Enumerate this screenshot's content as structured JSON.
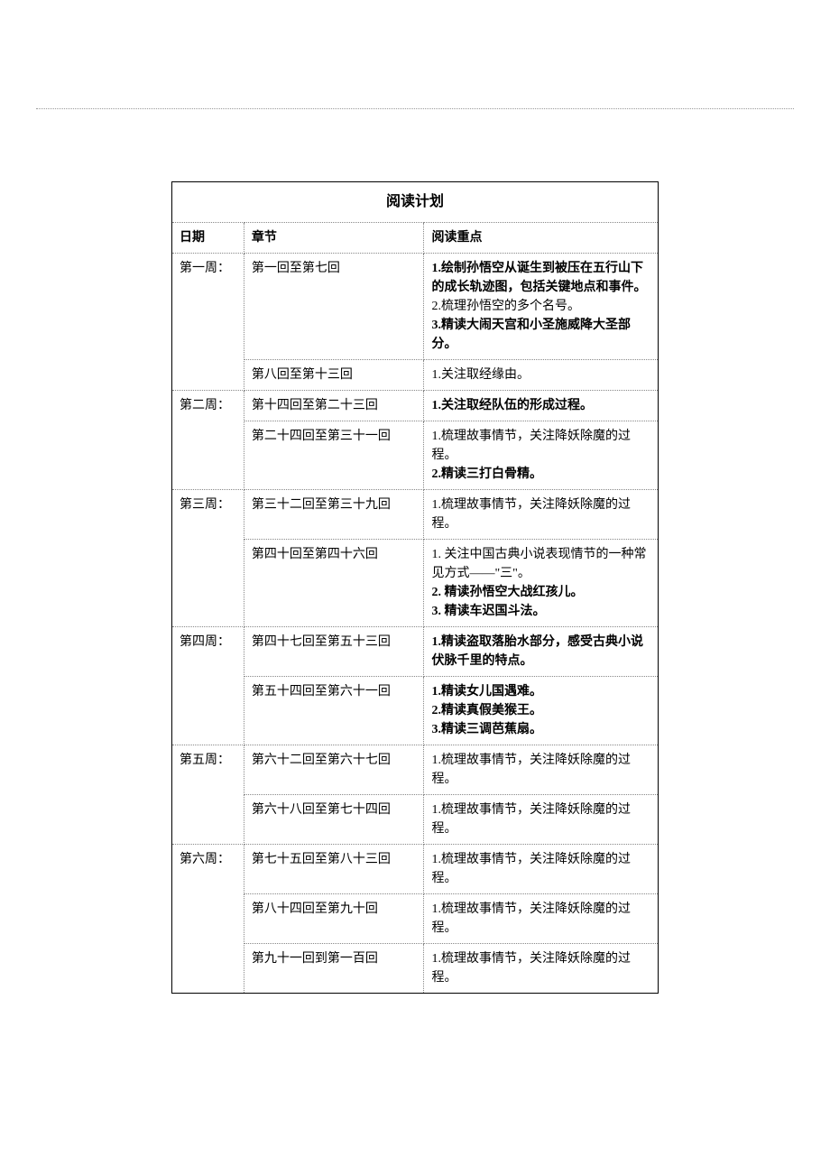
{
  "title": "阅读计划",
  "headers": {
    "date": "日期",
    "chapter": "章节",
    "focus": "阅读重点"
  },
  "rows": [
    {
      "date": "第一周：",
      "chapter": "第一回至第七回",
      "focus_parts": [
        {
          "text": "1.绘制孙悟空从诞生到被压在五行山下的成长轨迹图，包括关键地点和事件。",
          "bold": true
        },
        {
          "text": "2.梳理孙悟空的多个名号。",
          "bold": false
        },
        {
          "text": "3.精读大闹天宫和小圣施威降大圣部分。",
          "bold": true
        }
      ]
    },
    {
      "date": "",
      "chapter": "第八回至第十三回",
      "focus_parts": [
        {
          "text": "1.关注取经缘由。",
          "bold": false
        }
      ]
    },
    {
      "date": "第二周：",
      "chapter": "第十四回至第二十三回",
      "focus_parts": [
        {
          "text": "1.关注取经队伍的形成过程。",
          "bold": true
        }
      ]
    },
    {
      "date": "",
      "chapter": "第二十四回至第三十一回",
      "focus_parts": [
        {
          "text": "1.梳理故事情节，关注降妖除魔的过程。",
          "bold": false
        },
        {
          "text": "2.精读三打白骨精。",
          "bold": true
        }
      ]
    },
    {
      "date": "第三周：",
      "chapter": "第三十二回至第三十九回",
      "focus_parts": [
        {
          "text": "1.梳理故事情节，关注降妖除魔的过程。",
          "bold": false
        }
      ]
    },
    {
      "date": "",
      "chapter": "第四十回至第四十六回",
      "focus_parts": [
        {
          "text": "1. 关注中国古典小说表现情节的一种常见方式——\"三\"。",
          "bold": false
        },
        {
          "text": "2. 精读孙悟空大战红孩儿。",
          "bold": true
        },
        {
          "text": "3. 精读车迟国斗法。",
          "bold": true
        }
      ]
    },
    {
      "date": "第四周：",
      "chapter": "第四十七回至第五十三回",
      "focus_parts": [
        {
          "text": "1.精读盗取落胎水部分，感受古典小说伏脉千里的特点。",
          "bold": true
        }
      ]
    },
    {
      "date": "",
      "chapter": "第五十四回至第六十一回",
      "focus_parts": [
        {
          "text": "1.精读女儿国遇难。",
          "bold": true
        },
        {
          "text": "2.精读真假美猴王。",
          "bold": true
        },
        {
          "text": "3.精读三调芭蕉扇。",
          "bold": true
        }
      ]
    },
    {
      "date": "第五周：",
      "chapter": "第六十二回至第六十七回",
      "focus_parts": [
        {
          "text": "1.梳理故事情节，关注降妖除魔的过程。",
          "bold": false
        }
      ]
    },
    {
      "date": "",
      "chapter": "第六十八回至第七十四回",
      "focus_parts": [
        {
          "text": "1.梳理故事情节，关注降妖除魔的过程。",
          "bold": false
        }
      ]
    },
    {
      "date": "第六周：",
      "chapter": "第七十五回至第八十三回",
      "focus_parts": [
        {
          "text": "1.梳理故事情节，关注降妖除魔的过程。",
          "bold": false
        }
      ]
    },
    {
      "date": "",
      "chapter": "第八十四回至第九十回",
      "focus_parts": [
        {
          "text": "1.梳理故事情节，关注降妖除魔的过程。",
          "bold": false
        }
      ]
    },
    {
      "date": "",
      "chapter": "第九十一回到第一百回",
      "focus_parts": [
        {
          "text": "1.梳理故事情节，关注降妖除魔的过程。",
          "bold": false
        }
      ]
    }
  ],
  "rowspans": [
    {
      "start": 0,
      "span": 2
    },
    {
      "start": 2,
      "span": 2
    },
    {
      "start": 4,
      "span": 2
    },
    {
      "start": 6,
      "span": 2
    },
    {
      "start": 8,
      "span": 2
    },
    {
      "start": 10,
      "span": 3
    }
  ]
}
